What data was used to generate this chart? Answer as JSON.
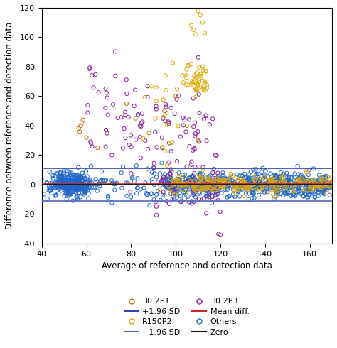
{
  "xlabel": "Average of reference and detection data",
  "ylabel": "Difference between reference and detection data",
  "xlim": [
    40,
    170
  ],
  "ylim": [
    -40,
    120
  ],
  "xticks": [
    40,
    60,
    80,
    100,
    120,
    140,
    160
  ],
  "yticks": [
    -40,
    -20,
    0,
    20,
    40,
    60,
    80,
    100,
    120
  ],
  "upper_sd_line": 11,
  "lower_sd_line": -11,
  "mean_diff_line": 0.5,
  "zero_line": 0,
  "upper_sd_color": "#3344aa",
  "lower_sd_color": "#5566bb",
  "mean_diff_color": "#cc2222",
  "zero_color": "#111111",
  "color_30_2P1": "#bb7700",
  "color_R150P2": "#ddaa00",
  "color_30_2P3": "#882299",
  "color_Others": "#2266cc",
  "figsize": [
    4.74,
    4.9
  ],
  "dpi": 100
}
